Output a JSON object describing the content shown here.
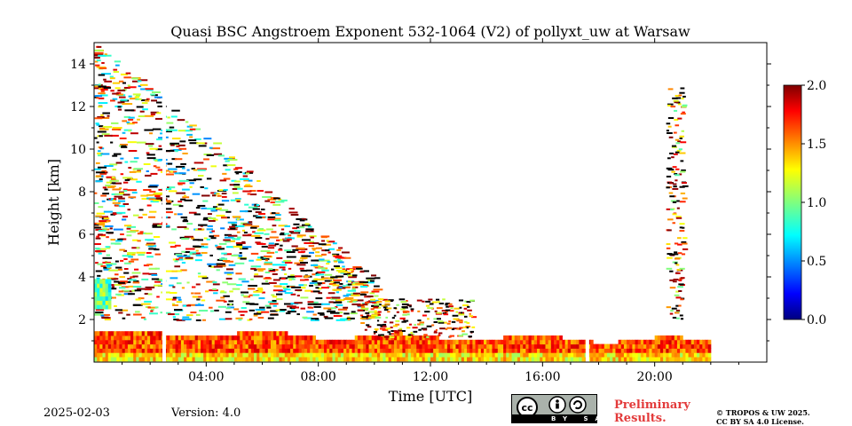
{
  "chart_data": {
    "type": "heatmap",
    "title": "Quasi BSC Angstroem Exponent 532-1064 (V2) of pollyxt_uw at Warsaw",
    "xlabel": "Time [UTC]",
    "ylabel": "Height [km]",
    "xlim": [
      0,
      24
    ],
    "ylim": [
      0,
      15
    ],
    "xticks": [
      "04:00",
      "08:00",
      "12:00",
      "16:00",
      "20:00"
    ],
    "xtick_values": [
      4,
      8,
      12,
      16,
      20
    ],
    "yticks": [
      "2",
      "4",
      "6",
      "8",
      "10",
      "12",
      "14"
    ],
    "ytick_values": [
      2,
      4,
      6,
      8,
      10,
      12,
      14
    ],
    "colorbar": {
      "min": 0.0,
      "max": 2.0,
      "ticks": [
        "0.0",
        "0.5",
        "1.0",
        "1.5",
        "2.0"
      ],
      "tick_values": [
        0.0,
        0.5,
        1.0,
        1.5,
        2.0
      ],
      "colormap": "jet"
    },
    "features": [
      {
        "name": "boundary layer",
        "time_range": [
          0,
          22
        ],
        "height_top_km": [
          1.3,
          0.9
        ],
        "value_approx": 1.6
      },
      {
        "name": "scattered upper layer",
        "time_range": [
          0,
          10
        ],
        "height_range_km": [
          2,
          15
        ],
        "value_approx": 1.3
      },
      {
        "name": "low layer early",
        "time_range": [
          0,
          0.6
        ],
        "height_range_km": [
          2.5,
          3.8
        ],
        "value_approx": 0.9
      },
      {
        "name": "cloud streak",
        "time_range": [
          20.4,
          21.0
        ],
        "height_range_km": [
          2,
          13
        ],
        "value_approx": 1.5
      }
    ],
    "gaps_utc": [
      2.5,
      17.6
    ]
  },
  "footer": {
    "date": "2025-02-03",
    "version": "Version: 4.0",
    "preliminary_line1": "Preliminary",
    "preliminary_line2": "Results.",
    "copyright_line1": "© TROPOS & UW 2025.",
    "copyright_line2": "CC BY SA 4.0 License.",
    "license_badge": "BY  SA"
  }
}
